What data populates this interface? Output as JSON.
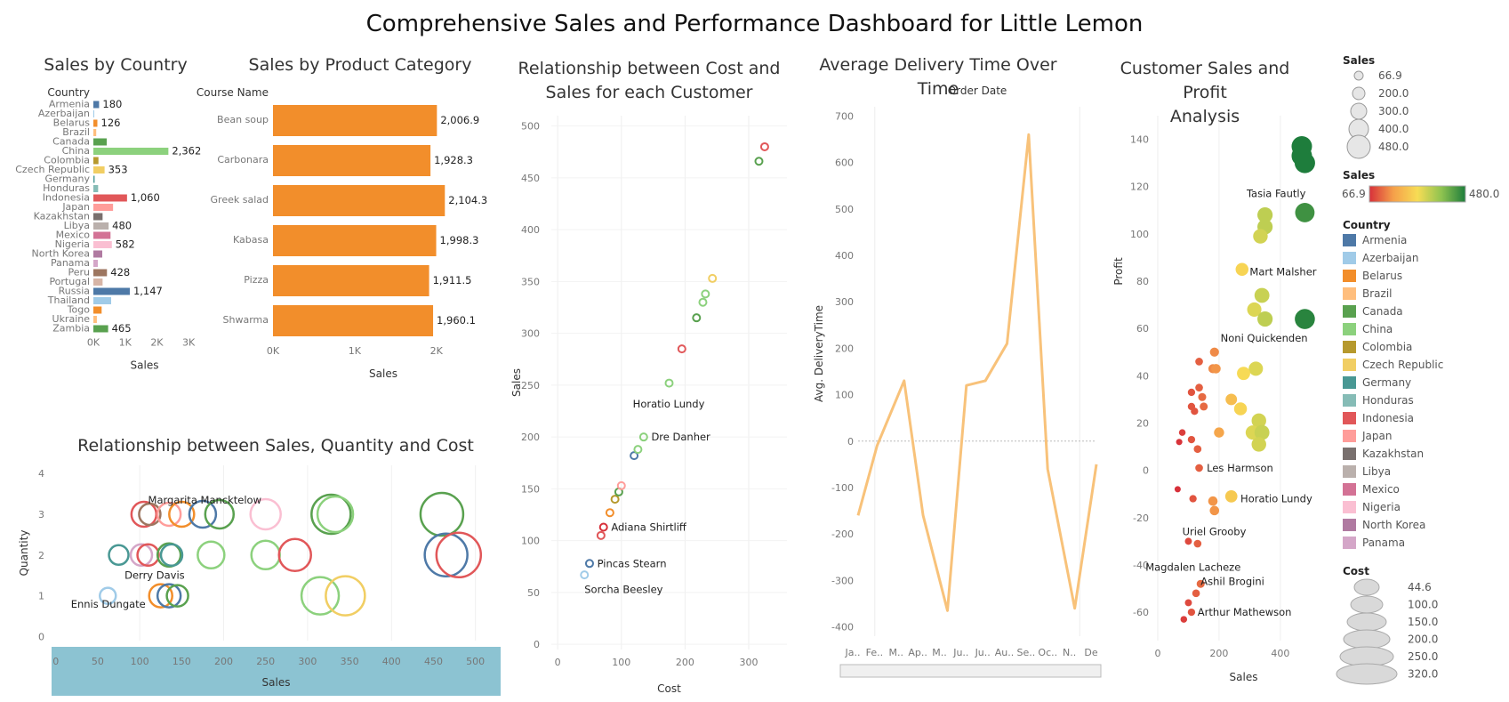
{
  "dashboard": {
    "title": "Comprehensive Sales and Performance Dashboard for Little Lemon"
  },
  "panels": {
    "country": {
      "title": "Sales by Country",
      "header": "Country",
      "xlabel": "Sales"
    },
    "category": {
      "title": "Sales by Product Category",
      "header": "Course Name",
      "xlabel": "Sales"
    },
    "costsales": {
      "title_line1": "Relationship between Cost and",
      "title_line2": "Sales for each Customer",
      "xlabel": "Cost",
      "ylabel": "Sales"
    },
    "delivery": {
      "title": "Average Delivery Time Over Time",
      "header": "Order Date",
      "ylabel": "Avg. DeliveryTime"
    },
    "profit": {
      "title_line1": "Customer Sales and Profit",
      "title_line2": "Analysis",
      "xlabel": "Sales",
      "ylabel": "Profit"
    },
    "bubble": {
      "title": "Relationship between Sales, Quantity and Cost",
      "xlabel": "Sales",
      "ylabel": "Quantity"
    }
  },
  "legends": {
    "sales_size": {
      "title": "Sales",
      "items": [
        "66.9",
        "200.0",
        "300.0",
        "400.0",
        "480.0"
      ]
    },
    "sales_color": {
      "title": "Sales",
      "min": "66.9",
      "max": "480.0",
      "colors": [
        "#d7303a",
        "#f5a04a",
        "#f7dc55",
        "#8ec350",
        "#1e7d3c"
      ]
    },
    "country": {
      "title": "Country",
      "items": [
        {
          "name": "Armenia",
          "color": "#4e79a7"
        },
        {
          "name": "Azerbaijan",
          "color": "#a0cbe8"
        },
        {
          "name": "Belarus",
          "color": "#f28e2b"
        },
        {
          "name": "Brazil",
          "color": "#ffbe7d"
        },
        {
          "name": "Canada",
          "color": "#59a14f"
        },
        {
          "name": "China",
          "color": "#8cd17d"
        },
        {
          "name": "Colombia",
          "color": "#b6992d"
        },
        {
          "name": "Czech Republic",
          "color": "#f1ce63"
        },
        {
          "name": "Germany",
          "color": "#499894"
        },
        {
          "name": "Honduras",
          "color": "#86bcb6"
        },
        {
          "name": "Indonesia",
          "color": "#e15759"
        },
        {
          "name": "Japan",
          "color": "#ff9d9a"
        },
        {
          "name": "Kazakhstan",
          "color": "#79706e"
        },
        {
          "name": "Libya",
          "color": "#bab0ac"
        },
        {
          "name": "Mexico",
          "color": "#d37295"
        },
        {
          "name": "Nigeria",
          "color": "#fabfd2"
        },
        {
          "name": "North Korea",
          "color": "#b07aa1"
        },
        {
          "name": "Panama",
          "color": "#d4a6c8"
        }
      ]
    },
    "cost_size": {
      "title": "Cost",
      "items": [
        "44.6",
        "100.0",
        "150.0",
        "200.0",
        "250.0",
        "320.0"
      ]
    }
  },
  "chart_data": [
    {
      "id": "country",
      "type": "bar",
      "title": "Sales by Country",
      "xlabel": "Sales",
      "xlim": [
        0,
        3500
      ],
      "ticks": [
        "0K",
        "1K",
        "2K",
        "3K"
      ],
      "tick_values": [
        0,
        1000,
        2000,
        3000
      ],
      "categories": [
        "Armenia",
        "Azerbaijan",
        "Belarus",
        "Brazil",
        "Canada",
        "China",
        "Colombia",
        "Czech Republic",
        "Germany",
        "Honduras",
        "Indonesia",
        "Japan",
        "Kazakhstan",
        "Libya",
        "Mexico",
        "Nigeria",
        "North Korea",
        "Panama",
        "Peru",
        "Portugal",
        "Russia",
        "Thailand",
        "Togo",
        "Ukraine",
        "Zambia"
      ],
      "values": [
        180,
        20,
        126,
        90,
        420,
        2362,
        160,
        353,
        40,
        150,
        1060,
        620,
        290,
        480,
        540,
        582,
        280,
        140,
        428,
        290,
        1147,
        560,
        260,
        110,
        465
      ],
      "labels": [
        "180",
        "",
        "126",
        "",
        "",
        "2,362",
        "",
        "353",
        "",
        "",
        "1,060",
        "",
        "",
        "480",
        "",
        "582",
        "",
        "",
        "428",
        "",
        "1,147",
        "",
        "",
        "",
        "465"
      ],
      "colors": [
        "#4e79a7",
        "#a0cbe8",
        "#f28e2b",
        "#ffbe7d",
        "#59a14f",
        "#8cd17d",
        "#b6992d",
        "#f1ce63",
        "#499894",
        "#86bcb6",
        "#e15759",
        "#ff9d9a",
        "#79706e",
        "#bab0ac",
        "#d37295",
        "#fabfd2",
        "#b07aa1",
        "#d4a6c8",
        "#9d7660",
        "#d7b5a6",
        "#4e79a7",
        "#a0cbe8",
        "#f28e2b",
        "#ffbe7d",
        "#59a14f"
      ]
    },
    {
      "id": "category",
      "type": "bar",
      "title": "Sales by Product Category",
      "xlabel": "Sales",
      "xlim": [
        0,
        2700
      ],
      "ticks": [
        "0K",
        "1K",
        "2K"
      ],
      "tick_values": [
        0,
        1000,
        2000
      ],
      "categories": [
        "Bean soup",
        "Carbonara",
        "Greek salad",
        "Kabasa",
        "Pizza",
        "Shwarma"
      ],
      "values": [
        2006.9,
        1928.3,
        2104.3,
        1998.3,
        1911.5,
        1960.1
      ],
      "labels": [
        "2,006.9",
        "1,928.3",
        "2,104.3",
        "1,998.3",
        "1,911.5",
        "1,960.1"
      ],
      "color": "#f28e2b"
    },
    {
      "id": "costsales",
      "type": "scatter",
      "title": "Relationship between Cost and Sales for each Customer",
      "xlabel": "Cost",
      "ylabel": "Sales",
      "xlim": [
        -10,
        360
      ],
      "ylim": [
        -5,
        510
      ],
      "xticks": [
        0,
        100,
        200,
        300
      ],
      "yticks": [
        0,
        50,
        100,
        150,
        200,
        250,
        300,
        350,
        400,
        450,
        500
      ],
      "points": [
        {
          "x": 42,
          "y": 67,
          "color": "#a0cbe8"
        },
        {
          "x": 50,
          "y": 78,
          "color": "#4e79a7"
        },
        {
          "x": 68,
          "y": 105,
          "color": "#e15759"
        },
        {
          "x": 72,
          "y": 113,
          "color": "#d7303a"
        },
        {
          "x": 82,
          "y": 127,
          "color": "#f28e2b"
        },
        {
          "x": 90,
          "y": 140,
          "color": "#b6992d"
        },
        {
          "x": 96,
          "y": 147,
          "color": "#59a14f"
        },
        {
          "x": 100,
          "y": 153,
          "color": "#ff9d9a"
        },
        {
          "x": 120,
          "y": 182,
          "color": "#4e79a7"
        },
        {
          "x": 126,
          "y": 188,
          "color": "#8cd17d"
        },
        {
          "x": 135,
          "y": 200,
          "color": "#8cd17d"
        },
        {
          "x": 175,
          "y": 252,
          "color": "#8cd17d"
        },
        {
          "x": 195,
          "y": 285,
          "color": "#e15759"
        },
        {
          "x": 218,
          "y": 315,
          "color": "#59a14f"
        },
        {
          "x": 228,
          "y": 330,
          "color": "#8cd17d"
        },
        {
          "x": 232,
          "y": 338,
          "color": "#8cd17d"
        },
        {
          "x": 243,
          "y": 353,
          "color": "#f1ce63"
        },
        {
          "x": 316,
          "y": 466,
          "color": "#59a14f"
        },
        {
          "x": 325,
          "y": 480,
          "color": "#e15759"
        }
      ],
      "annotations": [
        {
          "text": "Horatio Lundy",
          "x": 118,
          "y": 232
        },
        {
          "text": "Dre Danher",
          "x": 147,
          "y": 200
        },
        {
          "text": "Adiana Shirtliff",
          "x": 84,
          "y": 113
        },
        {
          "text": "Pincas Stearn",
          "x": 62,
          "y": 78
        },
        {
          "text": "Sorcha Beesley",
          "x": 42,
          "y": 53
        }
      ]
    },
    {
      "id": "delivery",
      "type": "line",
      "title": "Average Delivery Time Over Time",
      "xlabel": "Order Date",
      "ylabel": "Avg. DeliveryTime",
      "ylim": [
        -420,
        720
      ],
      "yticks": [
        -400,
        -300,
        -200,
        -100,
        0,
        100,
        200,
        300,
        400,
        500,
        600,
        700
      ],
      "categories": [
        "Ja..",
        "Fe..",
        "M..",
        "Ap..",
        "M..",
        "Ju..",
        "Ju..",
        "Au..",
        "Se..",
        "Oc..",
        "N..",
        "De"
      ],
      "x": [
        0,
        0.7,
        1.7,
        2.4,
        3.3,
        4.0,
        4.7,
        5.5,
        6.3,
        7.0,
        8.0,
        8.8
      ],
      "values": [
        -160,
        -10,
        130,
        -160,
        -365,
        120,
        130,
        210,
        660,
        -60,
        -360,
        -50
      ],
      "color": "#f8c27a"
    },
    {
      "id": "profit",
      "type": "scatter",
      "title": "Customer Sales and Profit Analysis",
      "xlabel": "Sales",
      "ylabel": "Profit",
      "xlim": [
        0,
        560
      ],
      "ylim": [
        -72,
        150
      ],
      "xticks": [
        0,
        200,
        400
      ],
      "yticks": [
        -60,
        -40,
        -20,
        0,
        20,
        40,
        60,
        80,
        100,
        120,
        140
      ],
      "points": [
        {
          "x": 470,
          "y": 137,
          "s": 480
        },
        {
          "x": 470,
          "y": 133,
          "s": 480
        },
        {
          "x": 480,
          "y": 130,
          "s": 480
        },
        {
          "x": 480,
          "y": 109,
          "s": 450
        },
        {
          "x": 350,
          "y": 108,
          "s": 330
        },
        {
          "x": 350,
          "y": 103,
          "s": 330
        },
        {
          "x": 335,
          "y": 99,
          "s": 310
        },
        {
          "x": 275,
          "y": 85,
          "s": 260
        },
        {
          "x": 340,
          "y": 74,
          "s": 320
        },
        {
          "x": 315,
          "y": 68,
          "s": 300
        },
        {
          "x": 350,
          "y": 64,
          "s": 330
        },
        {
          "x": 480,
          "y": 64,
          "s": 470
        },
        {
          "x": 185,
          "y": 50,
          "s": 150
        },
        {
          "x": 135,
          "y": 46,
          "s": 110
        },
        {
          "x": 180,
          "y": 43,
          "s": 150
        },
        {
          "x": 190,
          "y": 43,
          "s": 160
        },
        {
          "x": 320,
          "y": 43,
          "s": 300
        },
        {
          "x": 280,
          "y": 41,
          "s": 270
        },
        {
          "x": 135,
          "y": 35,
          "s": 110
        },
        {
          "x": 110,
          "y": 33,
          "s": 100
        },
        {
          "x": 145,
          "y": 31,
          "s": 120
        },
        {
          "x": 240,
          "y": 30,
          "s": 220
        },
        {
          "x": 110,
          "y": 27,
          "s": 100
        },
        {
          "x": 150,
          "y": 27,
          "s": 120
        },
        {
          "x": 120,
          "y": 25,
          "s": 100
        },
        {
          "x": 270,
          "y": 26,
          "s": 260
        },
        {
          "x": 330,
          "y": 21,
          "s": 310
        },
        {
          "x": 310,
          "y": 16,
          "s": 300
        },
        {
          "x": 340,
          "y": 16,
          "s": 320
        },
        {
          "x": 200,
          "y": 16,
          "s": 180
        },
        {
          "x": 80,
          "y": 16,
          "s": 80
        },
        {
          "x": 110,
          "y": 13,
          "s": 100
        },
        {
          "x": 70,
          "y": 12,
          "s": 70
        },
        {
          "x": 330,
          "y": 11,
          "s": 310
        },
        {
          "x": 130,
          "y": 9,
          "s": 110
        },
        {
          "x": 135,
          "y": 1,
          "s": 110
        },
        {
          "x": 65,
          "y": -8,
          "s": 66.9
        },
        {
          "x": 240,
          "y": -11,
          "s": 240
        },
        {
          "x": 115,
          "y": -12,
          "s": 100
        },
        {
          "x": 180,
          "y": -13,
          "s": 160
        },
        {
          "x": 185,
          "y": -17,
          "s": 160
        },
        {
          "x": 100,
          "y": -30,
          "s": 90
        },
        {
          "x": 130,
          "y": -31,
          "s": 110
        },
        {
          "x": 140,
          "y": -48,
          "s": 120
        },
        {
          "x": 125,
          "y": -52,
          "s": 110
        },
        {
          "x": 100,
          "y": -56,
          "s": 90
        },
        {
          "x": 110,
          "y": -60,
          "s": 100
        },
        {
          "x": 85,
          "y": -63,
          "s": 80
        }
      ],
      "annotations": [
        {
          "text": "Tasia Fautly",
          "x": 290,
          "y": 117
        },
        {
          "text": "Mart Malsher",
          "x": 300,
          "y": 84
        },
        {
          "text": "Noni Quickenden",
          "x": 205,
          "y": 56
        },
        {
          "text": "Les Harmson",
          "x": 160,
          "y": 1
        },
        {
          "text": "Horatio Lundy",
          "x": 270,
          "y": -12
        },
        {
          "text": "Uriel Grooby",
          "x": 80,
          "y": -26
        },
        {
          "text": "Magdalen Lacheze",
          "x": -40,
          "y": -41
        },
        {
          "text": "Ashil Brogini",
          "x": 140,
          "y": -47
        },
        {
          "text": "Arthur Mathewson",
          "x": 130,
          "y": -60
        }
      ]
    },
    {
      "id": "bubble",
      "type": "scatter",
      "title": "Relationship between Sales, Quantity and Cost",
      "xlabel": "Sales",
      "ylabel": "Quantity",
      "xlim": [
        -5,
        530
      ],
      "ylim": [
        -0.1,
        4.2
      ],
      "xticks": [
        0,
        50,
        100,
        150,
        200,
        250,
        300,
        350,
        400,
        450,
        500
      ],
      "yticks": [
        0,
        1,
        2,
        3,
        4
      ],
      "points": [
        {
          "x": 105,
          "y": 3,
          "r": 14,
          "color": "#e15759"
        },
        {
          "x": 112,
          "y": 3,
          "r": 12,
          "color": "#9d7660"
        },
        {
          "x": 135,
          "y": 3,
          "r": 13,
          "color": "#ff9d9a"
        },
        {
          "x": 150,
          "y": 3,
          "r": 14,
          "color": "#f28e2b"
        },
        {
          "x": 175,
          "y": 3,
          "r": 15,
          "color": "#4e79a7"
        },
        {
          "x": 195,
          "y": 3,
          "r": 16,
          "color": "#59a14f"
        },
        {
          "x": 250,
          "y": 3,
          "r": 17,
          "color": "#fabfd2"
        },
        {
          "x": 328,
          "y": 3,
          "r": 22,
          "color": "#59a14f"
        },
        {
          "x": 333,
          "y": 3,
          "r": 20,
          "color": "#8cd17d"
        },
        {
          "x": 460,
          "y": 3,
          "r": 24,
          "color": "#59a14f"
        },
        {
          "x": 75,
          "y": 2,
          "r": 11,
          "color": "#499894"
        },
        {
          "x": 102,
          "y": 2,
          "r": 12,
          "color": "#d4a6c8"
        },
        {
          "x": 110,
          "y": 2,
          "r": 12,
          "color": "#e15759"
        },
        {
          "x": 135,
          "y": 2,
          "r": 13,
          "color": "#59a14f"
        },
        {
          "x": 138,
          "y": 2,
          "r": 12,
          "color": "#499894"
        },
        {
          "x": 185,
          "y": 2,
          "r": 15,
          "color": "#8cd17d"
        },
        {
          "x": 250,
          "y": 2,
          "r": 16,
          "color": "#8cd17d"
        },
        {
          "x": 285,
          "y": 2,
          "r": 18,
          "color": "#e15759"
        },
        {
          "x": 465,
          "y": 2,
          "r": 24,
          "color": "#4e79a7"
        },
        {
          "x": 480,
          "y": 2,
          "r": 25,
          "color": "#e15759"
        },
        {
          "x": 62,
          "y": 1,
          "r": 9,
          "color": "#a0cbe8"
        },
        {
          "x": 125,
          "y": 1,
          "r": 13,
          "color": "#f28e2b"
        },
        {
          "x": 135,
          "y": 1,
          "r": 13,
          "color": "#4e79a7"
        },
        {
          "x": 145,
          "y": 1,
          "r": 12,
          "color": "#59a14f"
        },
        {
          "x": 315,
          "y": 1,
          "r": 21,
          "color": "#8cd17d"
        },
        {
          "x": 345,
          "y": 1,
          "r": 22,
          "color": "#f1ce63"
        }
      ],
      "annotations": [
        {
          "text": "Margarita Mancktelow",
          "x": 110,
          "y": 3.35
        },
        {
          "text": "Derry Davis",
          "x": 82,
          "y": 1.5
        },
        {
          "text": "Ennis Dungate",
          "x": 18,
          "y": 0.8
        }
      ]
    }
  ]
}
